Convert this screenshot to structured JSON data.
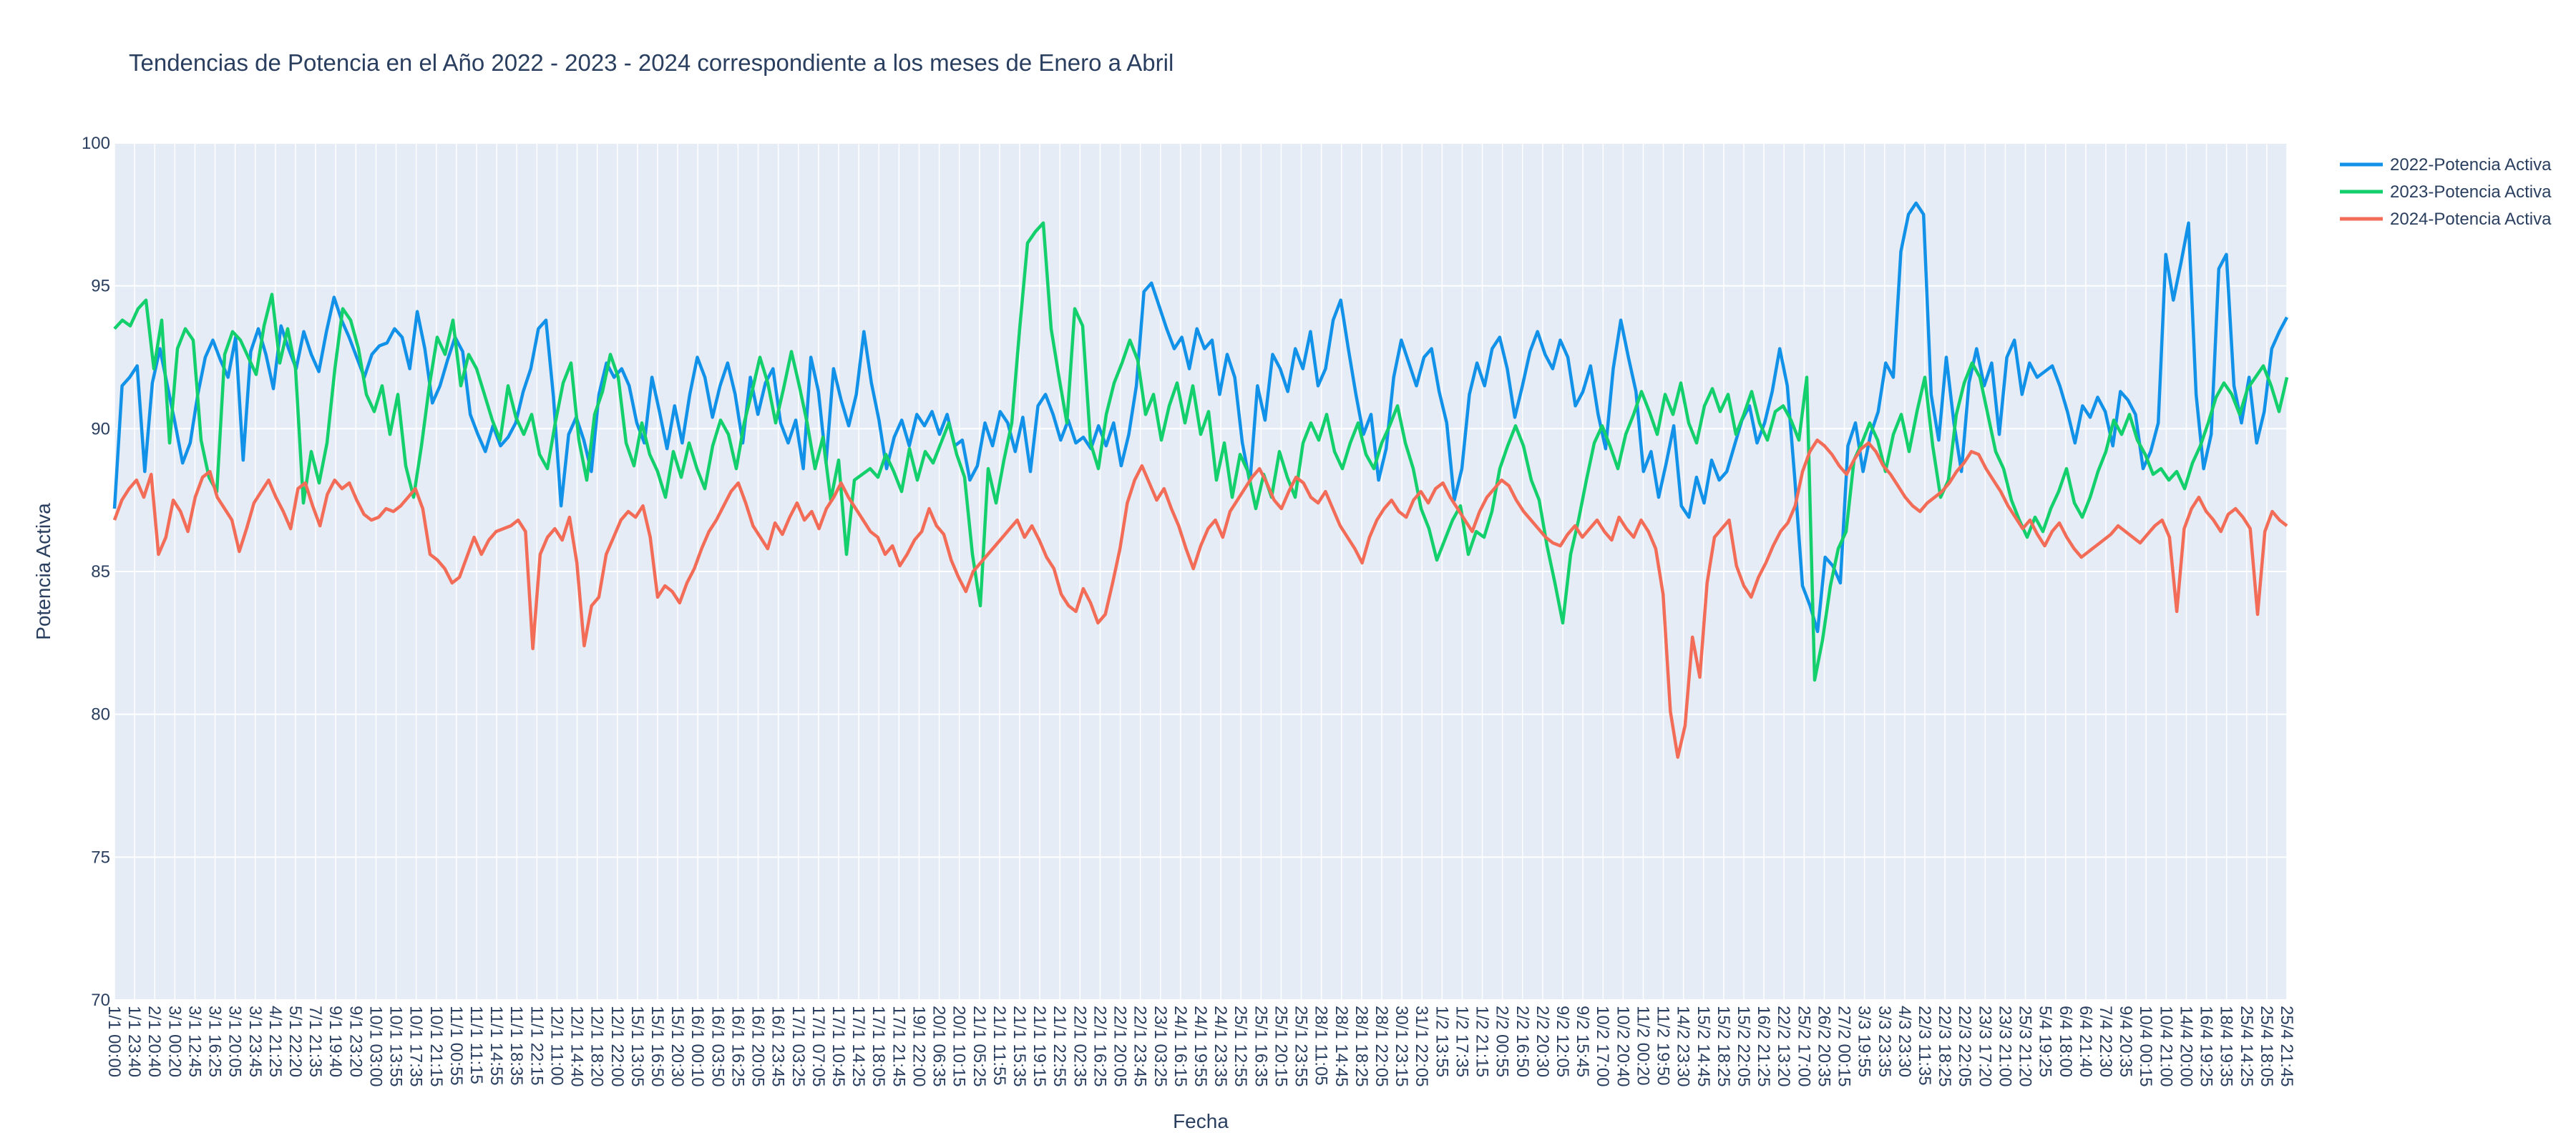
{
  "chart_data": {
    "type": "line",
    "title": "Tendencias de Potencia en el Año 2022 - 2023 - 2024 correspondiente a los meses de Enero a Abril",
    "xlabel": "Fecha",
    "ylabel": "Potencia Activa",
    "ylim": [
      70,
      100
    ],
    "yticks": [
      70,
      75,
      80,
      85,
      90,
      95,
      100
    ],
    "grid": true,
    "legend_position": "top-right",
    "plot_background": "#e5ecf6",
    "x_tick_labels": [
      "1/1 00:00",
      "1/1 23:40",
      "2/1 20:40",
      "3/1 00:20",
      "3/1 12:45",
      "3/1 16:25",
      "3/1 20:05",
      "3/1 23:45",
      "4/1 21:25",
      "5/1 22:20",
      "7/1 21:35",
      "9/1 19:40",
      "9/1 23:20",
      "10/1 03:00",
      "10/1 13:55",
      "10/1 17:35",
      "10/1 21:15",
      "11/1 00:55",
      "11/1 11:15",
      "11/1 14:55",
      "11/1 18:35",
      "11/1 22:15",
      "12/1 11:00",
      "12/1 14:40",
      "12/1 18:20",
      "12/1 22:00",
      "15/1 13:05",
      "15/1 16:50",
      "15/1 20:30",
      "16/1 00:10",
      "16/1 03:50",
      "16/1 16:25",
      "16/1 20:05",
      "16/1 23:45",
      "17/1 03:25",
      "17/1 07:05",
      "17/1 10:45",
      "17/1 14:25",
      "17/1 18:05",
      "17/1 21:45",
      "19/1 22:00",
      "20/1 06:35",
      "20/1 10:15",
      "21/1 05:25",
      "21/1 11:55",
      "21/1 15:35",
      "21/1 19:15",
      "21/1 22:55",
      "22/1 02:35",
      "22/1 16:25",
      "22/1 20:05",
      "22/1 23:45",
      "23/1 03:25",
      "24/1 16:15",
      "24/1 19:55",
      "24/1 23:35",
      "25/1 12:55",
      "25/1 16:35",
      "25/1 20:15",
      "25/1 23:55",
      "28/1 11:05",
      "28/1 14:45",
      "28/1 18:25",
      "28/1 22:05",
      "30/1 23:15",
      "31/1 22:05",
      "1/2 13:55",
      "1/2 17:35",
      "1/2 21:15",
      "2/2 00:55",
      "2/2 16:50",
      "2/2 20:30",
      "9/2 12:05",
      "9/2 15:45",
      "10/2 17:00",
      "10/2 20:40",
      "11/2 00:20",
      "11/2 19:50",
      "14/2 23:30",
      "15/2 14:45",
      "15/2 18:25",
      "15/2 22:05",
      "16/2 21:25",
      "22/2 13:20",
      "25/2 17:00",
      "26/2 20:35",
      "27/2 00:15",
      "3/3 19:55",
      "3/3 23:35",
      "4/3 23:30",
      "22/3 11:35",
      "22/3 18:25",
      "22/3 22:05",
      "23/3 17:20",
      "23/3 21:00",
      "25/3 21:20",
      "5/4 19:25",
      "6/4 18:00",
      "6/4 21:40",
      "7/4 22:30",
      "9/4 20:35",
      "10/4 00:15",
      "10/4 21:00",
      "14/4 20:00",
      "16/4 19:25",
      "18/4 19:35",
      "25/4 14:25",
      "25/4 18:05",
      "25/4 21:45"
    ],
    "series": [
      {
        "name": "2022-Potencia Activa",
        "color": "#1192e8",
        "values": [
          87.2,
          91.5,
          91.8,
          92.2,
          88.5,
          91.6,
          92.8,
          91.5,
          90.2,
          88.8,
          89.5,
          91.2,
          92.5,
          93.1,
          92.4,
          91.8,
          93.2,
          88.9,
          92.7,
          93.5,
          92.6,
          91.4,
          93.6,
          92.8,
          92.1,
          93.4,
          92.6,
          92.0,
          93.4,
          94.6,
          93.8,
          93.2,
          92.5,
          91.8,
          92.6,
          92.9,
          93.0,
          93.5,
          93.2,
          92.1,
          94.1,
          92.8,
          90.9,
          91.5,
          92.4,
          93.2,
          92.7,
          90.5,
          89.8,
          89.2,
          90.1,
          89.4,
          89.7,
          90.2,
          91.3,
          92.1,
          93.5,
          93.8,
          91.1,
          87.3,
          89.8,
          90.4,
          89.6,
          88.5,
          91.2,
          92.3,
          91.8,
          92.1,
          91.5,
          90.2,
          89.5,
          91.8,
          90.6,
          89.3,
          90.8,
          89.5,
          91.2,
          92.5,
          91.8,
          90.4,
          91.5,
          92.3,
          91.2,
          89.5,
          91.8,
          90.5,
          91.6,
          92.1,
          90.2,
          89.5,
          90.3,
          88.6,
          92.5,
          91.3,
          88.8,
          92.1,
          91.0,
          90.1,
          91.2,
          93.4,
          91.6,
          90.3,
          88.6,
          89.7,
          90.3,
          89.4,
          90.5,
          90.1,
          90.6,
          89.8,
          90.5,
          89.4,
          89.6,
          88.2,
          88.7,
          90.2,
          89.4,
          90.6,
          90.2,
          89.2,
          90.4,
          88.5,
          90.8,
          91.2,
          90.5,
          89.6,
          90.3,
          89.5,
          89.7,
          89.3,
          90.1,
          89.4,
          90.2,
          88.7,
          89.8,
          91.5,
          94.8,
          95.1,
          94.3,
          93.5,
          92.8,
          93.2,
          92.1,
          93.5,
          92.8,
          93.1,
          91.2,
          92.6,
          91.8,
          89.5,
          88.1,
          91.5,
          90.3,
          92.6,
          92.1,
          91.3,
          92.8,
          92.1,
          93.4,
          91.5,
          92.1,
          93.8,
          94.5,
          92.8,
          91.2,
          89.8,
          90.5,
          88.2,
          89.3,
          91.8,
          93.1,
          92.3,
          91.5,
          92.5,
          92.8,
          91.3,
          90.2,
          87.5,
          88.6,
          91.2,
          92.3,
          91.5,
          92.8,
          93.2,
          92.1,
          90.4,
          91.5,
          92.7,
          93.4,
          92.6,
          92.1,
          93.1,
          92.5,
          90.8,
          91.3,
          92.2,
          90.5,
          89.3,
          92.1,
          93.8,
          92.5,
          91.3,
          88.5,
          89.2,
          87.6,
          88.8,
          90.1,
          87.3,
          86.9,
          88.3,
          87.4,
          88.9,
          88.2,
          88.5,
          89.4,
          90.3,
          90.8,
          89.5,
          90.2,
          91.3,
          92.8,
          91.5,
          88.2,
          84.5,
          83.8,
          82.9,
          85.5,
          85.2,
          84.6,
          89.4,
          90.2,
          88.5,
          89.8,
          90.6,
          92.3,
          91.8,
          96.2,
          97.5,
          97.9,
          97.5,
          91.2,
          89.6,
          92.5,
          90.2,
          88.5,
          91.6,
          92.8,
          91.5,
          92.3,
          89.8,
          92.5,
          93.1,
          91.2,
          92.3,
          91.8,
          92.0,
          92.2,
          91.5,
          90.6,
          89.5,
          90.8,
          90.4,
          91.1,
          90.6,
          89.4,
          91.3,
          91.0,
          90.5,
          88.6,
          89.2,
          90.2,
          96.1,
          94.5,
          95.8,
          97.2,
          91.2,
          88.6,
          89.8,
          95.6,
          96.1,
          91.5,
          90.2,
          91.8,
          89.5,
          90.6,
          92.8,
          93.4,
          93.9
        ]
      },
      {
        "name": "2023-Potencia Activa",
        "color": "#13cf6c",
        "values": [
          93.5,
          93.8,
          93.6,
          94.2,
          94.5,
          92.1,
          93.8,
          89.5,
          92.8,
          93.5,
          93.1,
          89.6,
          88.3,
          87.8,
          92.6,
          93.4,
          93.1,
          92.5,
          91.9,
          93.6,
          94.7,
          92.3,
          93.5,
          92.1,
          87.4,
          89.2,
          88.1,
          89.5,
          92.1,
          94.2,
          93.8,
          92.8,
          91.2,
          90.6,
          91.5,
          89.8,
          91.2,
          88.7,
          87.6,
          89.4,
          91.5,
          93.2,
          92.6,
          93.8,
          91.5,
          92.6,
          92.1,
          91.2,
          90.3,
          89.6,
          91.5,
          90.4,
          89.8,
          90.5,
          89.1,
          88.6,
          90.2,
          91.6,
          92.3,
          89.6,
          88.2,
          90.5,
          91.3,
          92.6,
          91.8,
          89.5,
          88.7,
          90.2,
          89.1,
          88.5,
          87.6,
          89.2,
          88.3,
          89.5,
          88.6,
          87.9,
          89.4,
          90.3,
          89.8,
          88.6,
          90.2,
          91.3,
          92.5,
          91.6,
          90.2,
          91.4,
          92.7,
          91.5,
          90.2,
          88.6,
          89.7,
          87.5,
          88.9,
          85.6,
          88.2,
          88.4,
          88.6,
          88.3,
          89.1,
          88.5,
          87.8,
          89.3,
          88.2,
          89.2,
          88.8,
          89.5,
          90.2,
          89.1,
          88.3,
          85.6,
          83.8,
          88.6,
          87.4,
          88.9,
          90.2,
          93.5,
          96.5,
          96.9,
          97.2,
          93.5,
          91.8,
          90.2,
          94.2,
          93.6,
          89.5,
          88.6,
          90.5,
          91.6,
          92.3,
          93.1,
          92.4,
          90.5,
          91.2,
          89.6,
          90.8,
          91.6,
          90.2,
          91.5,
          89.8,
          90.6,
          88.2,
          89.5,
          87.6,
          89.1,
          88.5,
          87.2,
          88.4,
          87.6,
          89.2,
          88.3,
          87.6,
          89.5,
          90.2,
          89.6,
          90.5,
          89.2,
          88.6,
          89.5,
          90.2,
          89.1,
          88.6,
          89.5,
          90.1,
          90.8,
          89.5,
          88.6,
          87.2,
          86.5,
          85.4,
          86.1,
          86.8,
          87.3,
          85.6,
          86.4,
          86.2,
          87.1,
          88.6,
          89.4,
          90.1,
          89.4,
          88.2,
          87.5,
          85.9,
          84.6,
          83.2,
          85.6,
          86.8,
          88.2,
          89.5,
          90.1,
          89.4,
          88.6,
          89.8,
          90.5,
          91.3,
          90.6,
          89.8,
          91.2,
          90.5,
          91.6,
          90.2,
          89.5,
          90.8,
          91.4,
          90.6,
          91.2,
          89.8,
          90.5,
          91.3,
          90.2,
          89.6,
          90.6,
          90.8,
          90.3,
          89.6,
          91.8,
          81.2,
          82.6,
          84.5,
          85.8,
          86.4,
          88.9,
          89.5,
          90.2,
          89.6,
          88.5,
          89.8,
          90.5,
          89.2,
          90.6,
          91.8,
          89.4,
          87.6,
          88.2,
          90.5,
          91.6,
          92.3,
          91.8,
          90.5,
          89.2,
          88.6,
          87.5,
          86.8,
          86.2,
          86.9,
          86.4,
          87.2,
          87.8,
          88.6,
          87.4,
          86.9,
          87.6,
          88.5,
          89.2,
          90.3,
          89.8,
          90.5,
          89.6,
          89.1,
          88.4,
          88.6,
          88.2,
          88.5,
          87.9,
          88.8,
          89.4,
          90.2,
          91.1,
          91.6,
          91.2,
          90.5,
          91.4,
          91.8,
          92.2,
          91.5,
          90.6,
          91.8
        ]
      },
      {
        "name": "2024-Potencia Activa",
        "color": "#f26c57",
        "values": [
          86.8,
          87.5,
          87.9,
          88.2,
          87.6,
          88.4,
          85.6,
          86.2,
          87.5,
          87.1,
          86.4,
          87.6,
          88.3,
          88.5,
          87.6,
          87.2,
          86.8,
          85.7,
          86.5,
          87.4,
          87.8,
          88.2,
          87.6,
          87.1,
          86.5,
          87.9,
          88.1,
          87.3,
          86.6,
          87.7,
          88.2,
          87.9,
          88.1,
          87.5,
          87.0,
          86.8,
          86.9,
          87.2,
          87.1,
          87.3,
          87.6,
          87.9,
          87.2,
          85.6,
          85.4,
          85.1,
          84.6,
          84.8,
          85.5,
          86.2,
          85.6,
          86.1,
          86.4,
          86.5,
          86.6,
          86.8,
          86.4,
          82.3,
          85.6,
          86.2,
          86.5,
          86.1,
          86.9,
          85.3,
          82.4,
          83.8,
          84.1,
          85.6,
          86.2,
          86.8,
          87.1,
          86.9,
          87.3,
          86.2,
          84.1,
          84.5,
          84.3,
          83.9,
          84.6,
          85.1,
          85.8,
          86.4,
          86.8,
          87.3,
          87.8,
          88.1,
          87.4,
          86.6,
          86.2,
          85.8,
          86.7,
          86.3,
          86.9,
          87.4,
          86.8,
          87.1,
          86.5,
          87.2,
          87.6,
          88.1,
          87.6,
          87.2,
          86.8,
          86.4,
          86.2,
          85.6,
          85.9,
          85.2,
          85.6,
          86.1,
          86.4,
          87.2,
          86.6,
          86.3,
          85.4,
          84.8,
          84.3,
          85.0,
          85.3,
          85.6,
          85.9,
          86.2,
          86.5,
          86.8,
          86.2,
          86.6,
          86.1,
          85.5,
          85.1,
          84.2,
          83.8,
          83.6,
          84.4,
          83.9,
          83.2,
          83.5,
          84.6,
          85.8,
          87.4,
          88.2,
          88.7,
          88.1,
          87.5,
          87.9,
          87.2,
          86.6,
          85.8,
          85.1,
          85.9,
          86.5,
          86.8,
          86.2,
          87.1,
          87.5,
          87.9,
          88.3,
          88.6,
          88.1,
          87.5,
          87.2,
          87.8,
          88.3,
          88.1,
          87.6,
          87.4,
          87.8,
          87.2,
          86.6,
          86.2,
          85.8,
          85.3,
          86.2,
          86.8,
          87.2,
          87.5,
          87.1,
          86.9,
          87.5,
          87.8,
          87.4,
          87.9,
          88.1,
          87.6,
          87.2,
          86.8,
          86.4,
          87.1,
          87.6,
          87.9,
          88.2,
          88.0,
          87.5,
          87.1,
          86.8,
          86.5,
          86.2,
          86.0,
          85.9,
          86.3,
          86.6,
          86.2,
          86.5,
          86.8,
          86.4,
          86.1,
          86.9,
          86.5,
          86.2,
          86.8,
          86.4,
          85.8,
          84.2,
          80.1,
          78.5,
          79.6,
          82.7,
          81.3,
          84.6,
          86.2,
          86.5,
          86.8,
          85.2,
          84.5,
          84.1,
          84.8,
          85.3,
          85.9,
          86.4,
          86.7,
          87.3,
          88.5,
          89.2,
          89.6,
          89.4,
          89.1,
          88.7,
          88.4,
          88.9,
          89.3,
          89.5,
          89.2,
          88.7,
          88.4,
          88.0,
          87.6,
          87.3,
          87.1,
          87.4,
          87.6,
          87.8,
          88.1,
          88.5,
          88.8,
          89.2,
          89.1,
          88.6,
          88.2,
          87.8,
          87.3,
          86.9,
          86.5,
          86.8,
          86.3,
          85.9,
          86.4,
          86.7,
          86.2,
          85.8,
          85.5,
          85.7,
          85.9,
          86.1,
          86.3,
          86.6,
          86.4,
          86.2,
          86.0,
          86.3,
          86.6,
          86.8,
          86.2,
          83.6,
          86.5,
          87.2,
          87.6,
          87.1,
          86.8,
          86.4,
          87.0,
          87.2,
          86.9,
          86.5,
          83.5,
          86.4,
          87.1,
          86.8,
          86.6
        ]
      }
    ]
  }
}
